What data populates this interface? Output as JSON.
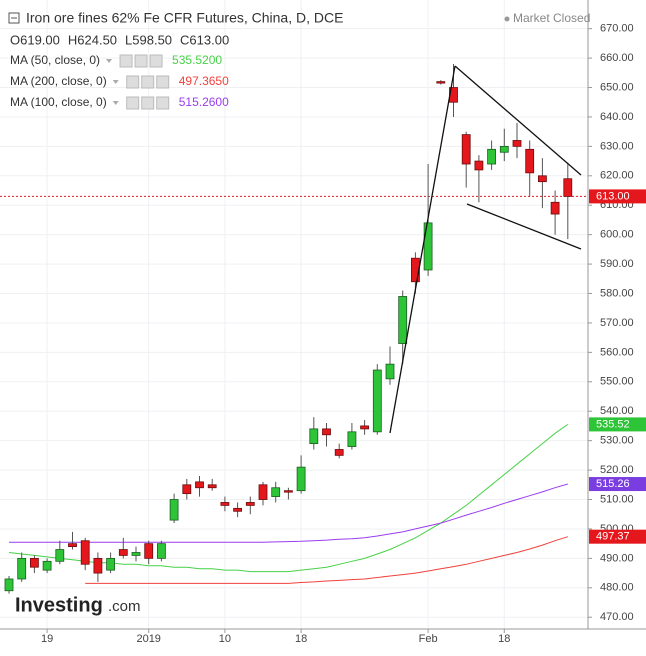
{
  "chart_data": {
    "type": "candlestick",
    "title": "Iron ore fines 62% Fe CFR Futures, China, D, DCE",
    "status": "Market Closed",
    "ohlc_header": [
      "O619.00",
      "H624.50",
      "L598.50",
      "C613.00"
    ],
    "watermark": [
      "Investing",
      ".com"
    ],
    "categories": [
      null,
      null,
      null,
      "19",
      null,
      null,
      null,
      null,
      null,
      null,
      null,
      "2019",
      null,
      null,
      null,
      null,
      null,
      "10",
      null,
      null,
      null,
      null,
      null,
      "18",
      null,
      null,
      null,
      null,
      null,
      null,
      null,
      null,
      null,
      "Feb",
      null,
      null,
      null,
      null,
      null,
      "18",
      null,
      null,
      null,
      null,
      null
    ],
    "open": [
      479,
      483,
      490,
      486,
      489,
      495,
      496,
      490,
      486,
      493,
      491,
      495,
      490,
      503,
      515,
      516,
      515,
      509,
      507,
      509,
      515,
      511,
      513,
      513,
      529,
      534,
      527,
      528,
      535,
      533,
      551,
      563,
      592,
      588,
      652,
      650,
      634,
      625,
      624,
      628,
      632,
      629,
      620,
      611,
      619
    ],
    "high": [
      484,
      492,
      491,
      490,
      496,
      499,
      497,
      492,
      492,
      497,
      494,
      496,
      496,
      512,
      517,
      518,
      517,
      511,
      509,
      511,
      516,
      516,
      514,
      525,
      538,
      536,
      529,
      536,
      537,
      556,
      562,
      581,
      594,
      624,
      652.5,
      658,
      635,
      627,
      632,
      636,
      638,
      632,
      626,
      615,
      624.5
    ],
    "low": [
      478,
      482,
      485,
      485,
      488,
      493,
      486,
      482,
      485,
      490,
      489,
      488,
      489,
      502,
      510,
      511,
      513,
      506,
      504,
      505,
      508,
      509,
      510,
      512,
      527,
      528,
      524,
      527,
      532,
      532,
      549,
      556,
      580,
      586,
      651,
      640,
      616,
      611,
      622,
      625,
      626,
      613,
      609,
      600,
      598.5
    ],
    "close": [
      483,
      490,
      487,
      489,
      493,
      494,
      488,
      485,
      490,
      491,
      492,
      490,
      495,
      510,
      512,
      514,
      514,
      508,
      506,
      508,
      510,
      514,
      512.5,
      521,
      534,
      532,
      525,
      533,
      534,
      554,
      556,
      579,
      584,
      604,
      651.5,
      645,
      624,
      622,
      629,
      630,
      630,
      621,
      618,
      607,
      613
    ],
    "up_color": "#2ec438",
    "down_color": "#e3171c",
    "series": [
      {
        "name": "MA (50, close, 0)",
        "color": "#47d147",
        "legend_value": "535.5200",
        "values": [
          492,
          491.5,
          491,
          490.5,
          490,
          489.5,
          489,
          488.5,
          488.5,
          488,
          488,
          487.5,
          487.5,
          487,
          487,
          486.5,
          486.5,
          486,
          486,
          485.5,
          485.5,
          485.5,
          485.5,
          486,
          486.5,
          487,
          488,
          489,
          490,
          491.5,
          493,
          495,
          497,
          499.5,
          502,
          505,
          508,
          511.5,
          515,
          518.5,
          522,
          525.5,
          529,
          532.5,
          535.52
        ]
      },
      {
        "name": "MA (200, close, 0)",
        "color": "#f0423c",
        "legend_value": "497.3650",
        "values": [
          null,
          null,
          null,
          null,
          null,
          null,
          481.5,
          481.5,
          481.5,
          481.5,
          481.5,
          481.5,
          481.5,
          481.5,
          481.5,
          481.5,
          481.5,
          481.5,
          481.5,
          481.5,
          481.5,
          481.5,
          481.5,
          481.8,
          482,
          482.3,
          482.5,
          482.8,
          483,
          483.5,
          484,
          484.5,
          485,
          485.7,
          486.5,
          487.2,
          488,
          489,
          490,
          491,
          492,
          493.2,
          494.5,
          496,
          497.37
        ]
      },
      {
        "name": "MA (100, close, 0)",
        "color": "#9b3cf0",
        "legend_value": "515.2600",
        "values": [
          495.5,
          495.5,
          495.5,
          495.5,
          495.5,
          495.5,
          495.5,
          495.5,
          495.5,
          495.5,
          495.5,
          495.5,
          495.5,
          495.5,
          495.5,
          495.5,
          495.5,
          495.5,
          495.5,
          495.5,
          495.5,
          495.6,
          495.7,
          495.8,
          496,
          496.2,
          496.5,
          496.7,
          497,
          497.6,
          498.3,
          499,
          500,
          501,
          502,
          503.3,
          504.7,
          506,
          507.3,
          508.7,
          510,
          511.3,
          512.6,
          514,
          515.26
        ]
      }
    ],
    "price_labels": [
      {
        "value": 613,
        "label": "613.00",
        "color": "#e3171c"
      },
      {
        "value": 535.52,
        "label": "535.52",
        "color": "#2ec438"
      },
      {
        "value": 515.26,
        "label": "515.26",
        "color": "#7a3ee0"
      },
      {
        "value": 497.37,
        "label": "497.37",
        "color": "#e3171c"
      }
    ],
    "ylim": [
      466,
      676
    ],
    "yticks": [
      {
        "value": 470,
        "label": "470.00"
      },
      {
        "value": 480,
        "label": "480.00"
      },
      {
        "value": 490,
        "label": "490.00"
      },
      {
        "value": 500,
        "label": "500.00"
      },
      {
        "value": 510,
        "label": "510.00"
      },
      {
        "value": 520,
        "label": "520.00"
      },
      {
        "value": 530,
        "label": "530.00"
      },
      {
        "value": 540,
        "label": "540.00"
      },
      {
        "value": 550,
        "label": "550.00"
      },
      {
        "value": 560,
        "label": "560.00"
      },
      {
        "value": 570,
        "label": "570.00"
      },
      {
        "value": 580,
        "label": "580.00"
      },
      {
        "value": 590,
        "label": "590.00"
      },
      {
        "value": 600,
        "label": "600.00"
      },
      {
        "value": 610,
        "label": "610.00"
      },
      {
        "value": 620,
        "label": "620.00"
      },
      {
        "value": 630,
        "label": "630.00"
      },
      {
        "value": 640,
        "label": "640.00"
      },
      {
        "value": 650,
        "label": "650.00"
      },
      {
        "value": 660,
        "label": "660.00"
      },
      {
        "value": 670,
        "label": "670.00"
      }
    ],
    "grid": true
  }
}
